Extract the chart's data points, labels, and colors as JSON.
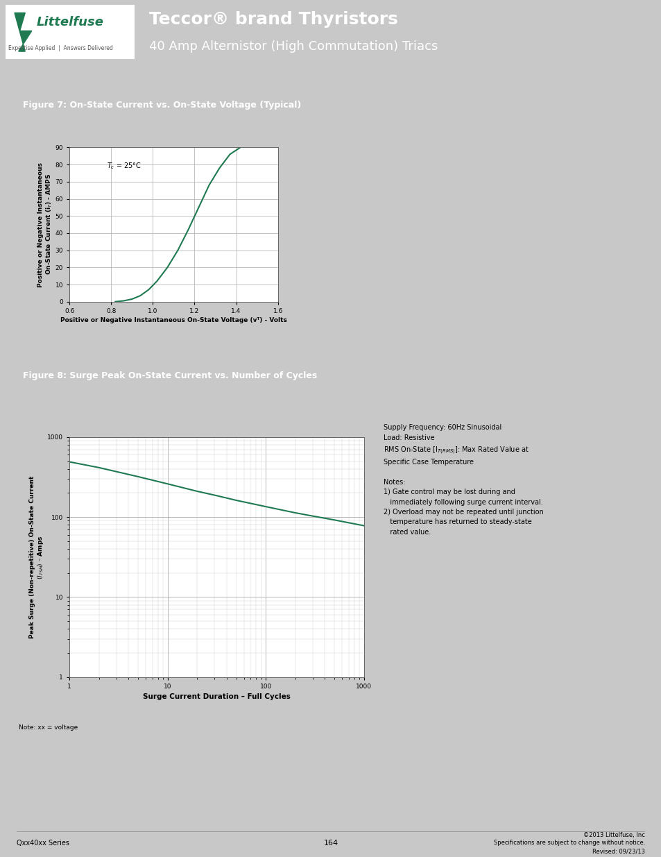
{
  "header_bg": "#1f7a52",
  "header_title": "Teccor® brand Thyristors",
  "header_subtitle": "40 Amp Alternistor (High Commutation) Triacs",
  "page_bg": "#c8c8c8",
  "content_bg": "#ffffff",
  "fig7_title": "Figure 7: On-State Current vs. On-State Voltage (Typical)",
  "fig7_title_bg": "#1f7a52",
  "fig7_xlabel": "Positive or Negative Instantaneous On-State Voltage (vᵀ) - Volts",
  "fig7_ylabel": "Positive or Negative Instantaneous\nOn-State Current (iᵀ) - AMPS",
  "fig7_xlim": [
    0.6,
    1.6
  ],
  "fig7_ylim": [
    0,
    90
  ],
  "fig7_xticks": [
    0.6,
    0.8,
    1.0,
    1.2,
    1.4,
    1.6
  ],
  "fig7_yticks": [
    0,
    10,
    20,
    30,
    40,
    50,
    60,
    70,
    80,
    90
  ],
  "fig7_curve_x": [
    0.82,
    0.86,
    0.9,
    0.94,
    0.98,
    1.02,
    1.07,
    1.12,
    1.17,
    1.22,
    1.27,
    1.32,
    1.37,
    1.42
  ],
  "fig7_curve_y": [
    0,
    0.5,
    1.5,
    3.5,
    7,
    12,
    20,
    30,
    42,
    55,
    68,
    78,
    86,
    90
  ],
  "fig7_curve_color": "#1f7a52",
  "fig8_title": "Figure 8: Surge Peak On-State Current vs. Number of Cycles",
  "fig8_title_bg": "#1f7a52",
  "fig8_xlabel": "Surge Current Duration – Full Cycles",
  "fig8_ylabel": "Peak Surge (Non-repetitive) On-State Current\n$(I_{TSM})$ – Amps",
  "fig8_curve_x": [
    1,
    2,
    3,
    5,
    10,
    20,
    30,
    50,
    100,
    200,
    300,
    500,
    1000
  ],
  "fig8_curve_y": [
    490,
    415,
    370,
    320,
    260,
    210,
    188,
    162,
    135,
    113,
    103,
    92,
    78
  ],
  "fig8_curve_color": "#1f7a52",
  "notes_text_line1": "Supply Frequency: 60Hz Sinusoidal",
  "notes_text_line2": "Load: Resistive",
  "notes_text_line3": "RMS On-State [I$_{T(RMS)}$]: Max Rated Value at",
  "notes_text_line4": "Specific Case Temperature",
  "notes_text_line5": "",
  "notes_text_line6": "Notes:",
  "notes_text_line7": "1) Gate control may be lost during and",
  "notes_text_line8": "   immediately following surge current interval.",
  "notes_text_line9": "2) Overload may not be repeated until junction",
  "notes_text_line10": "   temperature has returned to steady-state",
  "notes_text_line11": "   rated value.",
  "footer_left": "Qxx40xx Series",
  "footer_center": "164",
  "footer_right": "©2013 Littelfuse, Inc\nSpecifications are subject to change without notice.\nRevised: 09/23/13",
  "note_text": "Note: xx = voltage"
}
